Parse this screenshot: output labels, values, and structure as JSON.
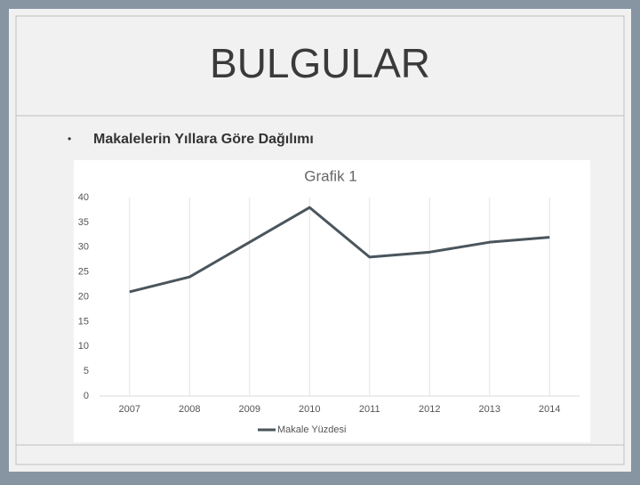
{
  "slide": {
    "title": "BULGULAR",
    "bullet": "Makalelerin Yıllara Göre Dağılımı"
  },
  "chart_data": {
    "type": "line",
    "title": "Grafik 1",
    "categories": [
      "2007",
      "2008",
      "2009",
      "2010",
      "2011",
      "2012",
      "2013",
      "2014"
    ],
    "series": [
      {
        "name": "Makale Yüzdesi",
        "color": "#4a555c",
        "values": [
          21,
          24,
          31,
          38,
          28,
          29,
          31,
          32
        ]
      }
    ],
    "ylim": [
      0,
      40
    ],
    "yticks": [
      0,
      5,
      10,
      15,
      20,
      25,
      30,
      35,
      40
    ],
    "grid": true
  }
}
